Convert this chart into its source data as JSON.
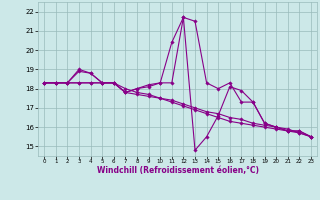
{
  "xlabel": "Windchill (Refroidissement éolien,°C)",
  "xlim": [
    -0.5,
    23.5
  ],
  "ylim": [
    14.5,
    22.5
  ],
  "yticks": [
    15,
    16,
    17,
    18,
    19,
    20,
    21,
    22
  ],
  "xticks": [
    0,
    1,
    2,
    3,
    4,
    5,
    6,
    7,
    8,
    9,
    10,
    11,
    12,
    13,
    14,
    15,
    16,
    17,
    18,
    19,
    20,
    21,
    22,
    23
  ],
  "background_color": "#cce8e8",
  "line_color": "#880088",
  "grid_color": "#99bbbb",
  "lines": [
    [
      18.3,
      18.3,
      18.3,
      19.0,
      18.8,
      18.3,
      18.3,
      17.8,
      18.0,
      18.2,
      18.3,
      20.4,
      21.7,
      21.5,
      18.3,
      18.0,
      18.3,
      17.3,
      17.3,
      16.2,
      16.0,
      15.8,
      15.8,
      15.5
    ],
    [
      18.3,
      18.3,
      18.3,
      18.3,
      18.3,
      18.3,
      18.3,
      18.0,
      17.8,
      17.7,
      17.5,
      17.3,
      17.1,
      16.9,
      16.7,
      16.5,
      16.3,
      16.2,
      16.1,
      16.0,
      15.9,
      15.8,
      15.7,
      15.5
    ],
    [
      18.3,
      18.3,
      18.3,
      18.9,
      18.8,
      18.3,
      18.3,
      17.8,
      18.0,
      18.1,
      18.3,
      18.3,
      21.7,
      14.8,
      15.5,
      16.6,
      18.1,
      17.9,
      17.3,
      16.2,
      16.0,
      15.8,
      15.8,
      15.5
    ],
    [
      18.3,
      18.3,
      18.3,
      18.3,
      18.3,
      18.3,
      18.3,
      17.8,
      17.7,
      17.6,
      17.5,
      17.4,
      17.2,
      17.0,
      16.8,
      16.7,
      16.5,
      16.4,
      16.2,
      16.1,
      16.0,
      15.9,
      15.7,
      15.5
    ]
  ]
}
